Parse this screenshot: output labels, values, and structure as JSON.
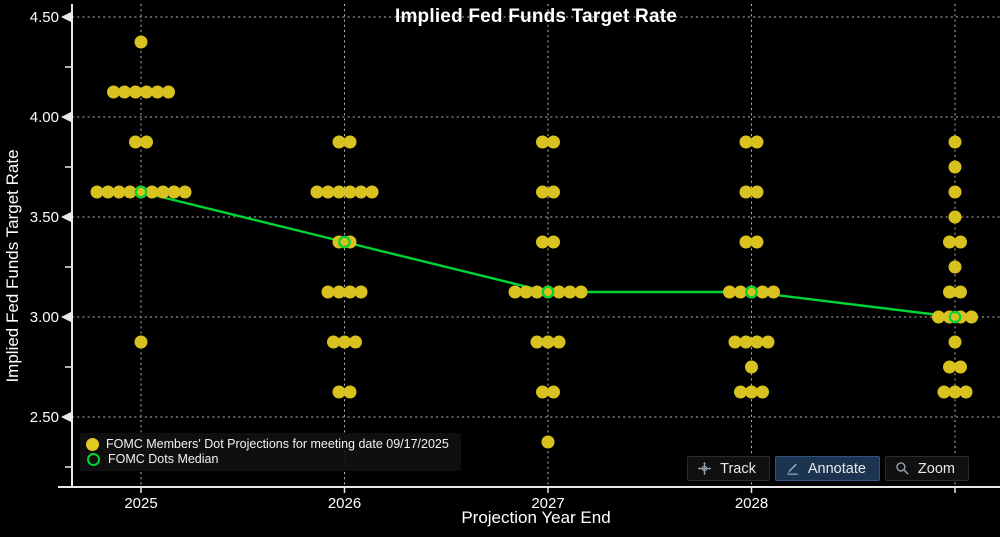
{
  "title": "Implied Fed Funds Target Rate",
  "legend": {
    "items": [
      {
        "label": "FOMC Members' Dot Projections for meeting date 09/17/2025",
        "marker": "filled-dot",
        "color": "#e3c822"
      },
      {
        "label": "FOMC Dots Median",
        "marker": "open-circle",
        "color": "#00d435"
      }
    ]
  },
  "toolbar": {
    "track_label": "Track",
    "annotate_label": "Annotate",
    "zoom_label": "Zoom",
    "active_button": "Annotate"
  },
  "chart_data": {
    "type": "scatter",
    "subtype": "fomc-dot-plot",
    "title": "Implied Fed Funds Target Rate",
    "xlabel": "Projection Year End",
    "ylabel": "Implied Fed Funds Target Rate",
    "ylim": [
      2.15,
      4.56
    ],
    "grid": true,
    "legend_position": "bottom-left",
    "y_major_ticks": [
      {
        "value": 4.5,
        "label": "4.50"
      },
      {
        "value": 4.0,
        "label": "4.00"
      },
      {
        "value": 3.5,
        "label": "3.50"
      },
      {
        "value": 3.0,
        "label": "3.00"
      },
      {
        "value": 2.5,
        "label": "2.50"
      }
    ],
    "y_minor_ticks": [
      4.25,
      3.75,
      3.25,
      2.75,
      2.25
    ],
    "categories": [
      "2025",
      "2026",
      "2027",
      "2028",
      ""
    ],
    "series": [
      {
        "name": "FOMC Members' Dot Projections for meeting date 09/17/2025",
        "type": "dot-distribution",
        "color": "#d9c21f",
        "columns": [
          {
            "x": "2025",
            "dots": [
              {
                "rate": 4.375,
                "count": 1
              },
              {
                "rate": 4.125,
                "count": 6
              },
              {
                "rate": 3.875,
                "count": 2
              },
              {
                "rate": 3.625,
                "count": 9
              },
              {
                "rate": 2.875,
                "count": 1
              }
            ]
          },
          {
            "x": "2026",
            "dots": [
              {
                "rate": 3.875,
                "count": 2
              },
              {
                "rate": 3.625,
                "count": 6
              },
              {
                "rate": 3.375,
                "count": 2
              },
              {
                "rate": 3.125,
                "count": 4
              },
              {
                "rate": 2.875,
                "count": 3
              },
              {
                "rate": 2.625,
                "count": 2
              }
            ]
          },
          {
            "x": "2027",
            "dots": [
              {
                "rate": 3.875,
                "count": 2
              },
              {
                "rate": 3.625,
                "count": 2
              },
              {
                "rate": 3.375,
                "count": 2
              },
              {
                "rate": 3.125,
                "count": 7
              },
              {
                "rate": 2.875,
                "count": 3
              },
              {
                "rate": 2.625,
                "count": 2
              },
              {
                "rate": 2.375,
                "count": 1
              }
            ]
          },
          {
            "x": "2028",
            "dots": [
              {
                "rate": 3.875,
                "count": 2
              },
              {
                "rate": 3.625,
                "count": 2
              },
              {
                "rate": 3.375,
                "count": 2
              },
              {
                "rate": 3.125,
                "count": 5
              },
              {
                "rate": 2.875,
                "count": 4
              },
              {
                "rate": 2.75,
                "count": 1
              },
              {
                "rate": 2.625,
                "count": 3
              }
            ]
          },
          {
            "x": "",
            "dots": [
              {
                "rate": 3.875,
                "count": 1
              },
              {
                "rate": 3.75,
                "count": 1
              },
              {
                "rate": 3.625,
                "count": 1
              },
              {
                "rate": 3.5,
                "count": 1
              },
              {
                "rate": 3.375,
                "count": 2
              },
              {
                "rate": 3.25,
                "count": 1
              },
              {
                "rate": 3.125,
                "count": 2
              },
              {
                "rate": 3.0,
                "count": 4
              },
              {
                "rate": 2.875,
                "count": 1
              },
              {
                "rate": 2.75,
                "count": 2
              },
              {
                "rate": 2.625,
                "count": 3
              }
            ]
          }
        ]
      },
      {
        "name": "FOMC Dots Median",
        "type": "line-open-circle",
        "color": "#00d435",
        "values": [
          3.625,
          3.375,
          3.125,
          3.125,
          3.0
        ]
      }
    ],
    "colors": {
      "background": "#000000",
      "dot": "#d9c21f",
      "median": "#00d435",
      "axis": "#e8e8e8",
      "grid": "#b8b8b8",
      "text": "#ffffff"
    }
  }
}
